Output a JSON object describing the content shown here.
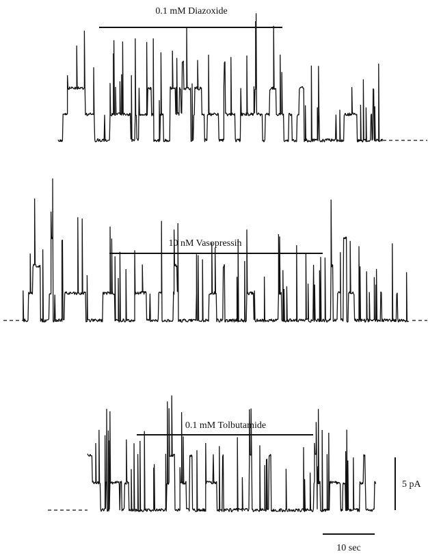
{
  "panels": [
    {
      "label": "0.1 mM Diazoxide"
    },
    {
      "label": "10 nM Vasopressin"
    },
    {
      "label": "0.1 mM Tolbutamide"
    }
  ],
  "scale_bars": {
    "current": "5 pA",
    "time": "10 sec"
  }
}
